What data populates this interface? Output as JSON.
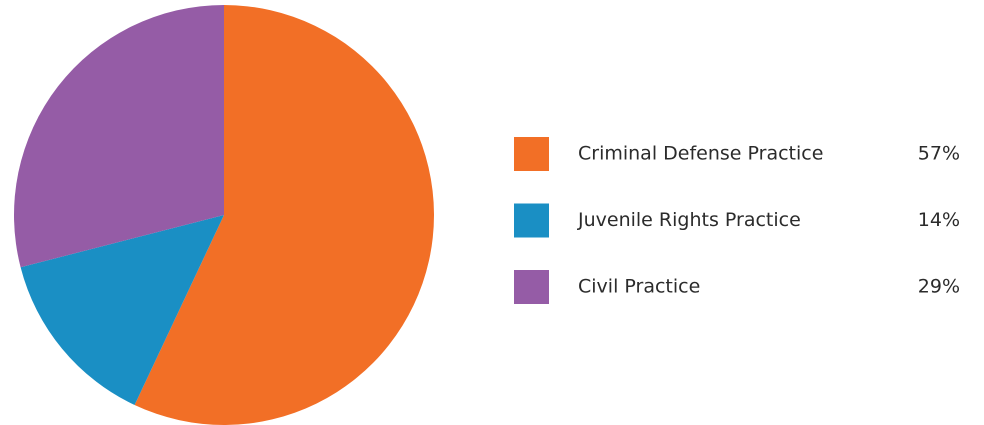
{
  "chart_data": {
    "type": "pie",
    "categories": [
      "Criminal Defense Practice",
      "Juvenile Rights Practice",
      "Civil Practice"
    ],
    "values": [
      57,
      14,
      29
    ],
    "value_labels": [
      "57%",
      "14%",
      "29%"
    ],
    "colors": [
      "#f26f26",
      "#1a8fc4",
      "#955ca6"
    ]
  }
}
